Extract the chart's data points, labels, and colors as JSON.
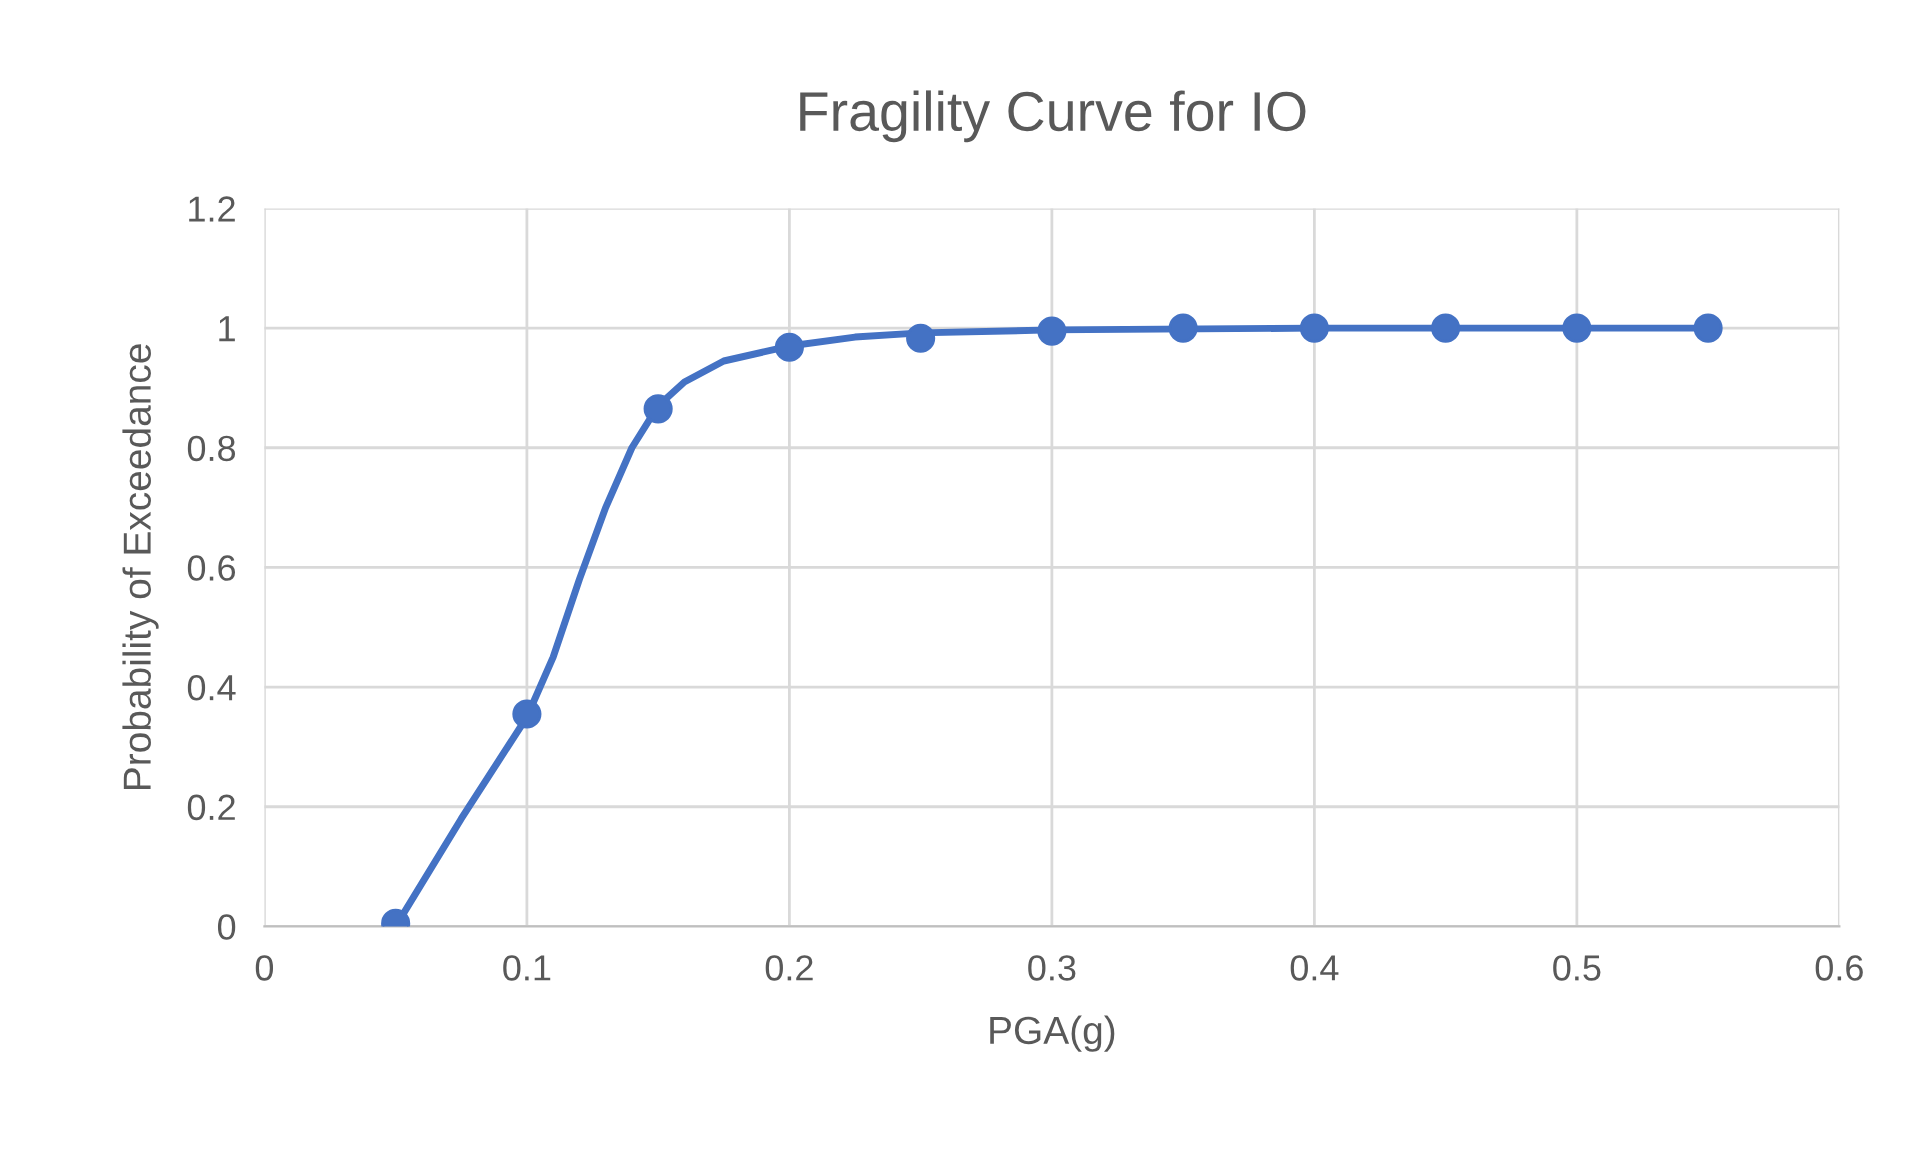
{
  "chart_data": {
    "type": "scatter",
    "title": "Fragility Curve for IO",
    "xlabel": "PGA(g)",
    "ylabel": "Probability of Exceedance",
    "x": [
      0.05,
      0.1,
      0.15,
      0.2,
      0.25,
      0.3,
      0.35,
      0.4,
      0.45,
      0.5,
      0.55
    ],
    "series": [
      {
        "color": "#4472c4",
        "marker": "circle",
        "values": [
          0.005,
          0.355,
          0.865,
          0.968,
          0.983,
          0.995,
          1.0,
          1.0,
          1.0,
          1.0,
          1.0
        ]
      },
      {
        "type": "line",
        "color": "#4472c4",
        "marker": "none",
        "line_style": "solid",
        "x": [
          0.05,
          0.075,
          0.1,
          0.11,
          0.12,
          0.13,
          0.14,
          0.15,
          0.16,
          0.175,
          0.2,
          0.225,
          0.25,
          0.3,
          0.4,
          0.55
        ],
        "values": [
          0.0,
          0.18,
          0.35,
          0.45,
          0.58,
          0.7,
          0.8,
          0.87,
          0.91,
          0.945,
          0.97,
          0.985,
          0.992,
          0.997,
          1.0,
          1.0
        ]
      }
    ],
    "xlim": [
      0,
      0.6
    ],
    "xticks": [
      0,
      0.1,
      0.2,
      0.3,
      0.4,
      0.5,
      0.6
    ],
    "ylim": [
      0,
      1.2
    ],
    "yticks": [
      0,
      0.2,
      0.4,
      0.6,
      0.8,
      1,
      1.2
    ],
    "grid": true
  }
}
